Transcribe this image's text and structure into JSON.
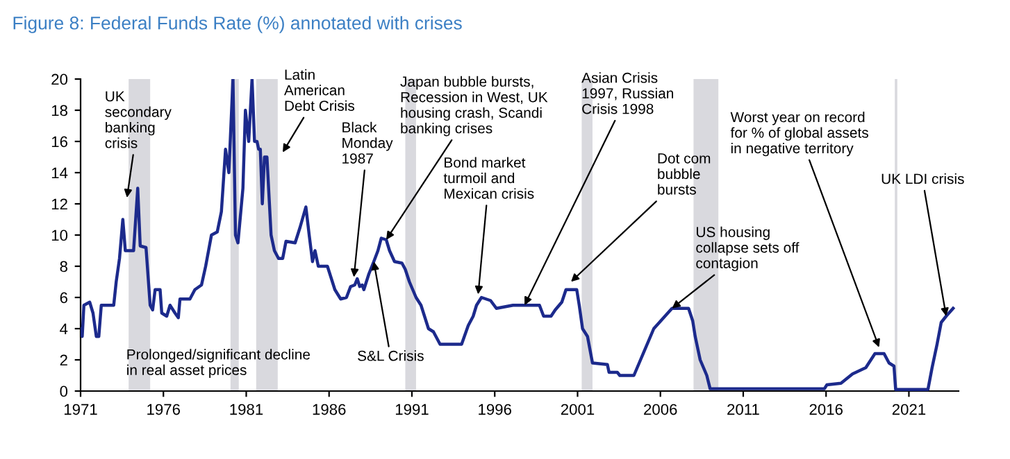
{
  "chart_data": {
    "type": "line",
    "title": "Figure 8: Federal Funds Rate (%) annotated with crises",
    "x": [
      1971.0,
      1971.1,
      1971.2,
      1971.55,
      1971.75,
      1971.95,
      1972.1,
      1972.25,
      1973.0,
      1973.15,
      1973.35,
      1973.55,
      1973.7,
      1974.2,
      1974.45,
      1974.6,
      1974.95,
      1975.2,
      1975.35,
      1975.5,
      1975.8,
      1975.9,
      1976.2,
      1976.4,
      1976.7,
      1976.9,
      1977.0,
      1977.6,
      1977.9,
      1978.3,
      1978.55,
      1978.9,
      1979.25,
      1979.5,
      1979.75,
      1979.95,
      1980.2,
      1980.35,
      1980.5,
      1980.8,
      1980.95,
      1981.15,
      1981.35,
      1981.5,
      1981.65,
      1981.75,
      1981.85,
      1981.97,
      1982.1,
      1982.25,
      1982.5,
      1982.7,
      1982.95,
      1983.2,
      1983.4,
      1983.95,
      1984.25,
      1984.6,
      1984.8,
      1985.0,
      1985.15,
      1985.35,
      1985.9,
      1986.05,
      1986.35,
      1986.7,
      1987.05,
      1987.3,
      1987.55,
      1987.7,
      1987.85,
      1988.0,
      1988.1,
      1988.4,
      1988.7,
      1988.95,
      1989.15,
      1989.45,
      1989.65,
      1989.95,
      1990.4,
      1990.6,
      1990.85,
      1991.25,
      1991.55,
      1992.0,
      1992.3,
      1992.7,
      1994.0,
      1994.4,
      1994.7,
      1994.9,
      1995.2,
      1995.75,
      1996.1,
      1997.1,
      1998.7,
      1998.95,
      1999.4,
      1999.65,
      2000.05,
      2000.3,
      2000.95,
      2001.1,
      2001.3,
      2001.6,
      2001.9,
      2002.8,
      2002.9,
      2003.4,
      2003.55,
      2004.4,
      2004.8,
      2005.6,
      2006.7,
      2007.7,
      2007.95,
      2008.1,
      2008.4,
      2008.8,
      2009.0,
      2015.9,
      2016.05,
      2016.9,
      2017.6,
      2018.4,
      2018.95,
      2019.5,
      2019.8,
      2020.1,
      2020.2,
      2022.15,
      2022.4,
      2022.7,
      2022.95,
      2023.25,
      2023.67
    ],
    "values": [
      4.0,
      3.5,
      5.5,
      5.7,
      5.0,
      3.5,
      3.5,
      5.5,
      5.5,
      7.0,
      8.5,
      11.0,
      9.0,
      9.0,
      13.0,
      9.3,
      9.2,
      5.5,
      5.2,
      6.5,
      6.5,
      5.0,
      4.8,
      5.5,
      5.0,
      4.7,
      5.9,
      5.9,
      6.5,
      6.8,
      8.0,
      10.0,
      10.2,
      11.5,
      15.5,
      14.0,
      20.0,
      10.0,
      9.5,
      13.0,
      18.0,
      16.0,
      20.0,
      16.0,
      16.0,
      15.5,
      15.5,
      12.0,
      15.0,
      15.0,
      10.0,
      9.0,
      8.5,
      8.5,
      9.6,
      9.5,
      10.5,
      11.8,
      10.0,
      8.3,
      9.0,
      8.0,
      8.0,
      7.5,
      6.5,
      5.9,
      6.0,
      6.7,
      6.8,
      7.2,
      6.7,
      6.8,
      6.5,
      7.5,
      8.3,
      9.0,
      9.8,
      9.7,
      9.0,
      8.3,
      8.2,
      7.8,
      7.0,
      6.0,
      5.5,
      4.0,
      3.8,
      3.0,
      3.0,
      4.2,
      4.8,
      5.5,
      6.0,
      5.8,
      5.3,
      5.5,
      5.5,
      4.8,
      4.8,
      5.2,
      5.7,
      6.5,
      6.5,
      5.5,
      4.0,
      3.5,
      1.8,
      1.7,
      1.2,
      1.2,
      1.0,
      1.0,
      2.0,
      4.0,
      5.3,
      5.3,
      4.5,
      3.5,
      2.0,
      1.0,
      0.15,
      0.15,
      0.4,
      0.5,
      1.1,
      1.5,
      2.4,
      2.4,
      1.8,
      1.6,
      0.1,
      0.1,
      1.5,
      3.0,
      4.4,
      4.8,
      5.3
    ],
    "color": "#1c2a8c",
    "xlim": [
      1971,
      2024
    ],
    "ylim": [
      0,
      20
    ],
    "xticks": [
      1971,
      1976,
      1981,
      1986,
      1991,
      1996,
      2001,
      2006,
      2011,
      2016,
      2021
    ],
    "yticks": [
      0,
      2,
      4,
      6,
      8,
      10,
      12,
      14,
      16,
      18,
      20
    ],
    "grid": false,
    "line_style": "solid",
    "marker": "none",
    "bands": [
      {
        "axis": "x",
        "from": 1973.9,
        "to": 1975.2,
        "color": "#d9d9de"
      },
      {
        "axis": "x",
        "from": 1980.05,
        "to": 1980.55,
        "color": "#d9d9de"
      },
      {
        "axis": "x",
        "from": 1981.6,
        "to": 1982.9,
        "color": "#d9d9de"
      },
      {
        "axis": "x",
        "from": 1990.6,
        "to": 1991.25,
        "color": "#d9d9de"
      },
      {
        "axis": "x",
        "from": 2001.25,
        "to": 2001.9,
        "color": "#d9d9de"
      },
      {
        "axis": "x",
        "from": 2008.0,
        "to": 2009.5,
        "color": "#d9d9de"
      },
      {
        "axis": "x",
        "from": 2020.15,
        "to": 2020.3,
        "color": "#d9d9de"
      }
    ],
    "annotations": [
      {
        "text": "UK\nsecondary\nbanking\ncrisis",
        "x": 1973.8,
        "y": 12.4
      },
      {
        "text": "Latin\nAmerican\nDebt Crisis",
        "x": 1983.2,
        "y": 15.3
      },
      {
        "text": "Black\nMonday\n1987",
        "x": 1987.5,
        "y": 7.3
      },
      {
        "text": "Japan bubble bursts,\nRecession in West, UK\nhousing crash, Scandi\nbanking crises",
        "x": 1989.45,
        "y": 9.7
      },
      {
        "text": "S&L Crisis",
        "x": 1988.7,
        "y": 8.3
      },
      {
        "text": "Bond market\nturmoil and\nMexican crisis",
        "x": 1995.0,
        "y": 6.2
      },
      {
        "text": "Asian Crisis\n1997, Russian\nCrisis 1998",
        "x": 1997.8,
        "y": 5.5
      },
      {
        "text": "Dot com\nbubble\nbursts",
        "x": 2000.6,
        "y": 7.0
      },
      {
        "text": "US housing\ncollapse sets off\ncontagion",
        "x": 2006.7,
        "y": 5.3
      },
      {
        "text": "Worst year on record\nfor % of global assets\nin negative territory",
        "x": 2019.2,
        "y": 2.8
      },
      {
        "text": "UK LDI crisis",
        "x": 2023.25,
        "y": 4.8
      },
      "Prolonged/significant decline\nin real asset prices"
    ]
  }
}
